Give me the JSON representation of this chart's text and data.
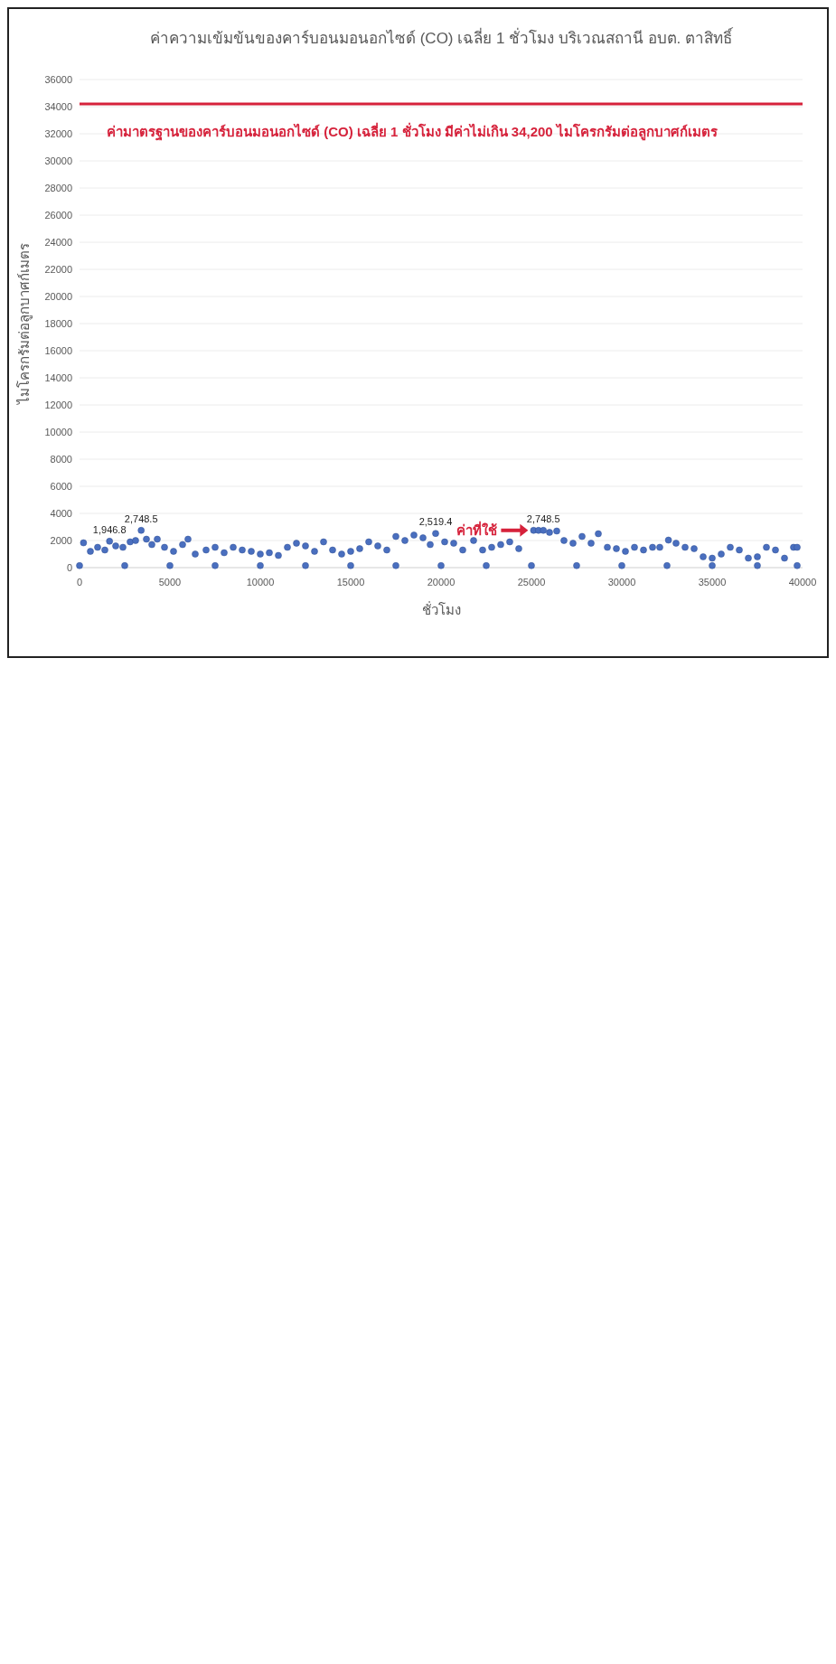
{
  "chart_data": {
    "type": "scatter",
    "title": "ค่าความเข้มข้นของคาร์บอนมอนอกไซด์ (CO) เฉลี่ย 1 ชั่วโมง บริเวณสถานี อบต. ตาสิทธิ์",
    "xlabel": "ชั่วโมง",
    "ylabel": "ไมโครกรัมต่อลูกบาศก์เมตร",
    "xlim": [
      0,
      40000
    ],
    "xticks": [
      0,
      5000,
      10000,
      15000,
      20000,
      25000,
      30000,
      35000,
      40000
    ],
    "ylim": [
      0,
      36000
    ],
    "yticks": [
      0,
      2000,
      4000,
      6000,
      8000,
      10000,
      12000,
      14000,
      16000,
      18000,
      20000,
      22000,
      24000,
      26000,
      28000,
      30000,
      32000,
      34000,
      36000
    ],
    "grid": "y",
    "marker": "circle",
    "series": [
      {
        "color": "#4a6fbf",
        "x": [
          220,
          600,
          1000,
          1400,
          1660,
          2000,
          2400,
          2800,
          3100,
          3410,
          3700,
          4000,
          4300,
          4700,
          5200,
          5700,
          6000,
          6400,
          7000,
          7500,
          8000,
          8500,
          9000,
          9500,
          10000,
          10500,
          11000,
          11500,
          12000,
          12500,
          13000,
          13500,
          14000,
          14500,
          15000,
          15500,
          16000,
          16500,
          17000,
          17500,
          18000,
          18500,
          19000,
          19400,
          19700,
          20200,
          20700,
          21200,
          21800,
          22300,
          22800,
          23300,
          23800,
          24300,
          25120,
          25390,
          25660,
          26000,
          26400,
          26800,
          27300,
          27800,
          28300,
          28700,
          29200,
          29700,
          30200,
          30700,
          31200,
          31700,
          32100,
          32580,
          33000,
          33500,
          34000,
          34500,
          35000,
          35500,
          36000,
          36500,
          37000,
          37500,
          38000,
          38500,
          39000,
          39500,
          39700,
          0,
          2500,
          5000,
          7500,
          10000,
          12500,
          15000,
          17500,
          20000,
          22500,
          25000,
          27500,
          30000,
          32500,
          35000,
          37500,
          39700
        ],
        "values": [
          1830,
          1200,
          1500,
          1300,
          1946.8,
          1600,
          1500,
          1900,
          2000,
          2748.5,
          2100,
          1700,
          2100,
          1500,
          1200,
          1700,
          2100,
          1000,
          1300,
          1500,
          1100,
          1500,
          1300,
          1200,
          1000,
          1100,
          900,
          1500,
          1800,
          1600,
          1200,
          1900,
          1300,
          1000,
          1200,
          1400,
          1900,
          1600,
          1300,
          2300,
          2000,
          2400,
          2200,
          1700,
          2519.4,
          1900,
          1800,
          1300,
          2000,
          1300,
          1500,
          1700,
          1900,
          1400,
          2748.5,
          2748.5,
          2748.5,
          2600,
          2700,
          2000,
          1800,
          2300,
          1800,
          2500,
          1500,
          1400,
          1200,
          1500,
          1300,
          1500,
          1500,
          2030,
          1800,
          1500,
          1400,
          800,
          700,
          1000,
          1500,
          1300,
          700,
          800,
          1500,
          1300,
          700,
          1500,
          1500,
          150,
          150,
          150,
          150,
          150,
          150,
          150,
          150,
          150,
          150,
          150,
          150,
          150,
          150,
          150,
          150,
          150
        ],
        "value_labels": [
          null,
          null,
          null,
          null,
          "1,946.8",
          null,
          null,
          null,
          null,
          "2,748.5",
          null,
          null,
          null,
          null,
          null,
          null,
          null,
          null,
          null,
          null,
          null,
          null,
          null,
          null,
          null,
          null,
          null,
          null,
          null,
          null,
          null,
          null,
          null,
          null,
          null,
          null,
          null,
          null,
          null,
          null,
          null,
          null,
          null,
          null,
          "2,519.4",
          null,
          null,
          null,
          null,
          null,
          null,
          null,
          null,
          null,
          null,
          null,
          "2,748.5",
          null,
          null,
          null,
          null,
          null,
          null,
          null,
          null,
          null,
          null,
          null,
          null,
          null,
          null,
          null,
          null,
          null,
          null,
          null,
          null,
          null,
          null,
          null,
          null,
          null,
          null,
          null,
          null,
          null,
          null,
          null,
          null,
          null,
          null,
          null,
          null,
          null,
          null,
          null,
          null,
          null,
          null,
          null,
          null,
          null,
          null,
          null
        ]
      }
    ],
    "ref_lines": [
      {
        "axis": "y",
        "value": 34200,
        "label": "ค่ามาตรฐานของคาร์บอนมอนอกไซด์ (CO) เฉลี่ย 1 ชั่วโมง มีค่าไม่เกิน 34,200 ไมโครกรัมต่อลูกบาศก์เมตร",
        "color": "#d6223b"
      }
    ],
    "annotations": [
      {
        "text": "ค่าที่ใช้",
        "x": 25120,
        "y": 2748.5
      }
    ]
  }
}
